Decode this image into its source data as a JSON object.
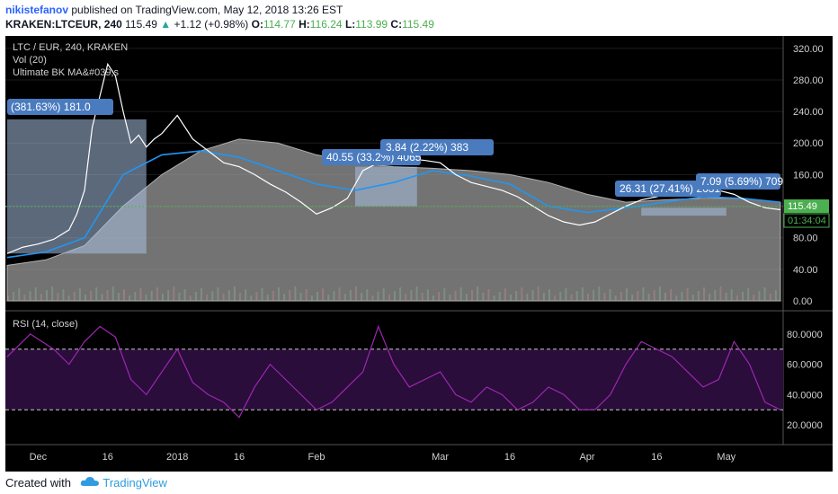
{
  "header": {
    "author": "nikistefanov",
    "published_text": "published on TradingView.com, May 12, 2018 13:26 EST",
    "symbol": "KRAKEN:LTCEUR, 240",
    "last": "115.49",
    "change_arrow": "▲",
    "change": "+1.12 (+0.98%)",
    "o_label": "O:",
    "o_value": "114.77",
    "h_label": "H:",
    "h_value": "116.24",
    "l_label": "L:",
    "l_value": "113.99",
    "c_label": "C:",
    "c_value": "115.49"
  },
  "legend": {
    "title": "LTC / EUR, 240, KRAKEN",
    "vol": "Vol (20)",
    "indicator": "Ultimate BK MA&#039;s"
  },
  "price_badges": {
    "last_price": "115.49",
    "countdown": "01:34:04"
  },
  "annotations": [
    {
      "text": "(381.63%) 181.0"
    },
    {
      "text": "40.55 (33.2%) 4065"
    },
    {
      "text": "3.84 (2.22%) 383"
    },
    {
      "text": "26.31 (27.41%) 2631"
    },
    {
      "text": "7.09 (5.69%) 709"
    }
  ],
  "footer": {
    "created_with": "Created with",
    "brand": "TradingView"
  },
  "colors": {
    "background": "#000000",
    "price_line": "#ffffff",
    "ma_fast": "#2196f3",
    "ma_slow_area": "#8a8a8a",
    "rsi_line": "#9c27b0",
    "rsi_band": "#2a0d3a",
    "annotation_box": "#4a7bbf",
    "last_price_badge": "#4caf50"
  },
  "chart_data": [
    {
      "type": "line",
      "title": "LTC / EUR, 240, KRAKEN",
      "x_ticks": [
        "Dec",
        "16",
        "2018",
        "16",
        "Feb",
        "Mar",
        "16",
        "Apr",
        "16",
        "May"
      ],
      "y_ticks": [
        "320.00",
        "280.00",
        "240.00",
        "200.00",
        "160.00",
        "120.00",
        "80.00",
        "40.00",
        "0.00"
      ],
      "ylim": [
        0,
        330
      ],
      "series": [
        {
          "x": [
            0,
            2,
            4,
            6,
            8,
            9,
            10,
            11,
            12,
            13,
            14,
            15,
            16,
            17,
            18,
            19,
            20,
            22,
            24,
            26,
            28,
            30,
            32,
            34,
            36,
            38,
            40,
            42,
            44,
            46,
            48,
            50,
            52,
            54,
            56,
            58,
            60,
            62,
            64,
            66,
            68,
            70,
            72,
            74,
            76,
            78,
            80,
            82,
            84,
            86,
            88,
            90,
            92,
            94,
            96,
            98,
            100
          ],
          "values": [
            60,
            68,
            72,
            78,
            90,
            110,
            140,
            220,
            260,
            300,
            285,
            240,
            200,
            210,
            195,
            205,
            212,
            235,
            205,
            190,
            175,
            170,
            160,
            148,
            138,
            125,
            110,
            118,
            130,
            165,
            175,
            185,
            180,
            178,
            175,
            160,
            150,
            145,
            140,
            132,
            120,
            108,
            100,
            96,
            100,
            110,
            120,
            128,
            132,
            138,
            142,
            145,
            140,
            135,
            125,
            118,
            115.49
          ]
        },
        {
          "x": [
            0,
            5,
            10,
            15,
            20,
            25,
            30,
            35,
            40,
            45,
            50,
            55,
            60,
            65,
            70,
            75,
            80,
            85,
            90,
            95,
            100
          ],
          "values": [
            55,
            62,
            80,
            160,
            185,
            190,
            182,
            165,
            148,
            140,
            150,
            165,
            158,
            148,
            120,
            112,
            118,
            125,
            132,
            130,
            125
          ]
        },
        {
          "x": [
            0,
            5,
            10,
            15,
            20,
            25,
            30,
            35,
            40,
            45,
            50,
            55,
            60,
            65,
            70,
            75,
            80,
            85,
            90,
            95,
            100
          ],
          "values": [
            45,
            52,
            70,
            120,
            160,
            190,
            205,
            200,
            185,
            175,
            170,
            168,
            165,
            160,
            150,
            135,
            125,
            128,
            130,
            130,
            125
          ]
        }
      ]
    },
    {
      "type": "line",
      "title": "RSI (14, close)",
      "y_ticks": [
        "80.0000",
        "60.0000",
        "40.0000",
        "20.0000"
      ],
      "ylim": [
        10,
        90
      ],
      "bands": [
        30,
        70
      ],
      "series": [
        {
          "x": [
            0,
            3,
            6,
            8,
            10,
            12,
            14,
            16,
            18,
            20,
            22,
            24,
            26,
            28,
            30,
            32,
            34,
            36,
            38,
            40,
            42,
            44,
            46,
            48,
            50,
            52,
            54,
            56,
            58,
            60,
            62,
            64,
            66,
            68,
            70,
            72,
            74,
            76,
            78,
            80,
            82,
            84,
            86,
            88,
            90,
            92,
            94,
            96,
            98,
            100
          ],
          "values": [
            65,
            80,
            70,
            60,
            75,
            85,
            78,
            50,
            40,
            55,
            70,
            48,
            40,
            35,
            25,
            45,
            60,
            50,
            40,
            30,
            35,
            45,
            55,
            85,
            60,
            45,
            50,
            55,
            40,
            35,
            45,
            40,
            30,
            35,
            45,
            40,
            30,
            30,
            40,
            60,
            75,
            70,
            65,
            55,
            45,
            50,
            75,
            60,
            35,
            30
          ]
        }
      ]
    }
  ]
}
